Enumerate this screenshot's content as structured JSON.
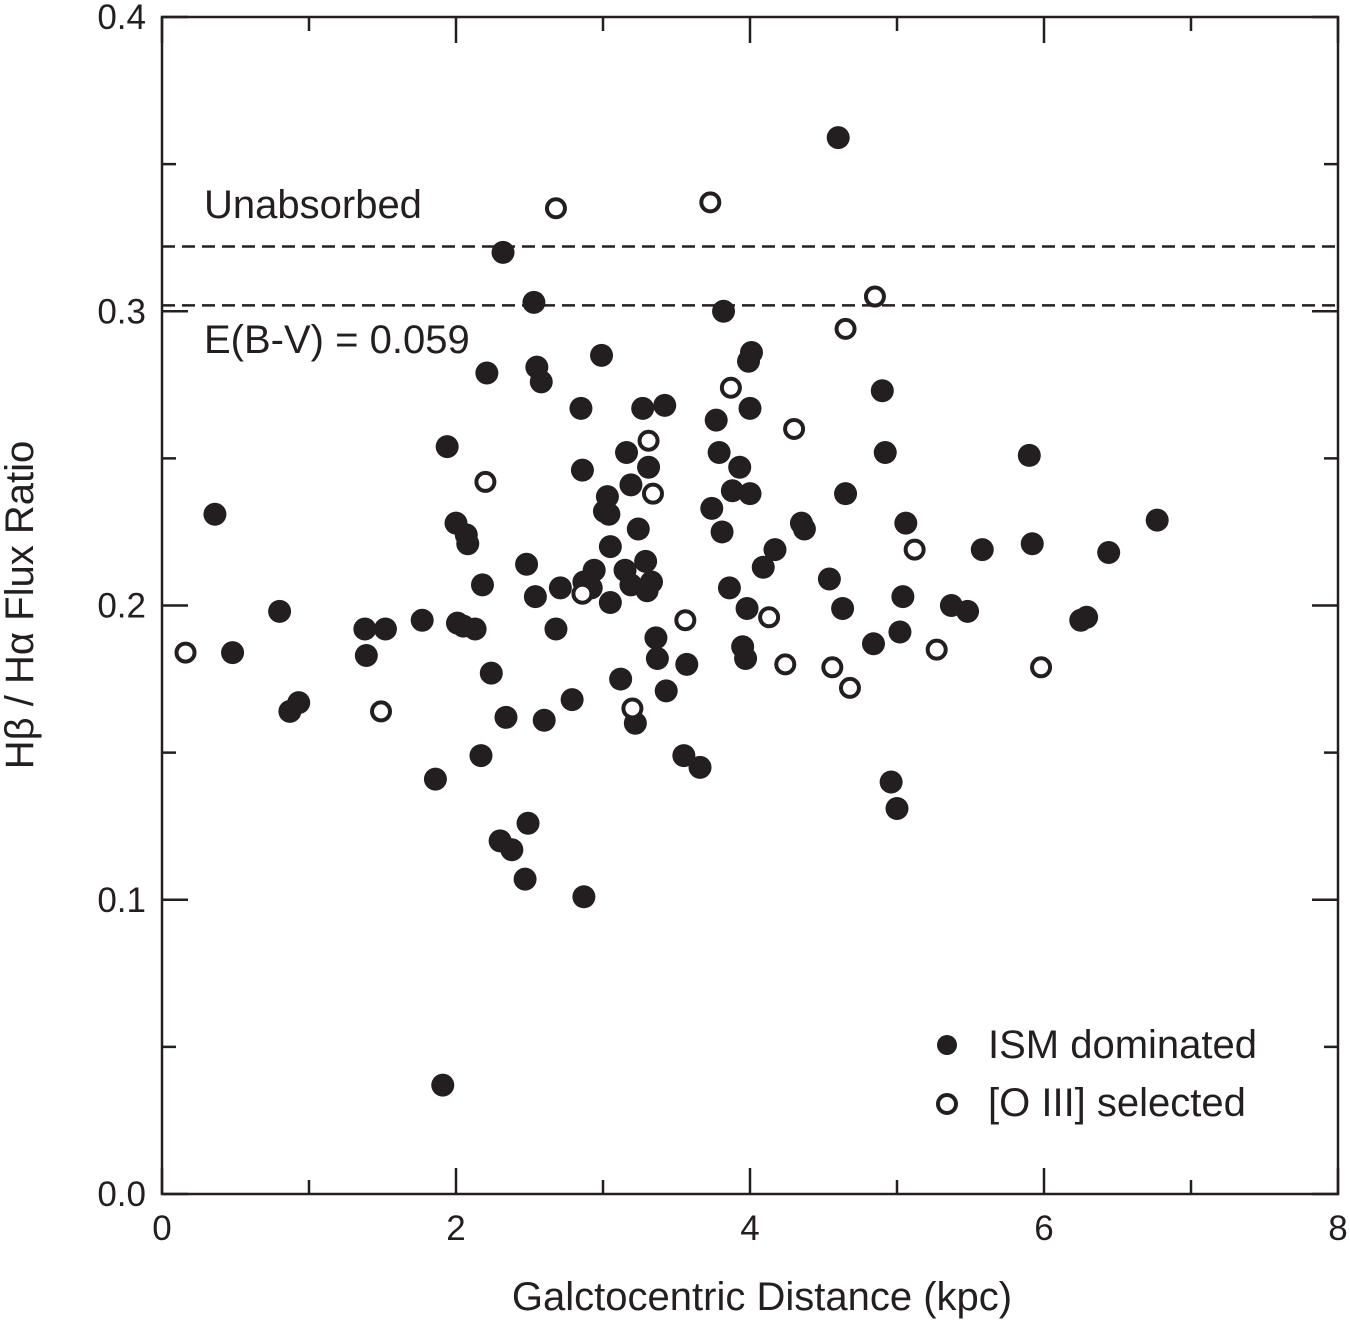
{
  "chart_data": {
    "type": "scatter",
    "xlabel": "Galctocentric Distance (kpc)",
    "ylabel": "Hβ / Hα Flux Ratio",
    "xlim": [
      0,
      8
    ],
    "ylim": [
      0.0,
      0.4
    ],
    "xticks": [
      "0",
      "2",
      "4",
      "6",
      "8"
    ],
    "yticks": [
      "0.0",
      "0.1",
      "0.2",
      "0.3",
      "0.4"
    ],
    "grid": false,
    "legend_position": "bottom-right",
    "colors": {
      "ink": "#231f20",
      "background": "#ffffff"
    },
    "reference_lines": [
      {
        "y": 0.322,
        "style": "dashed",
        "label": "Unabsorbed"
      },
      {
        "y": 0.302,
        "style": "dashed",
        "label": "E(B-V) = 0.059"
      }
    ],
    "series": [
      {
        "name": "ISM dominated",
        "marker": "filled-circle",
        "points": [
          [
            0.36,
            0.231
          ],
          [
            0.48,
            0.184
          ],
          [
            0.8,
            0.198
          ],
          [
            0.87,
            0.164
          ],
          [
            0.93,
            0.167
          ],
          [
            1.38,
            0.192
          ],
          [
            1.39,
            0.183
          ],
          [
            1.52,
            0.192
          ],
          [
            1.77,
            0.195
          ],
          [
            1.86,
            0.141
          ],
          [
            1.91,
            0.037
          ],
          [
            1.94,
            0.254
          ],
          [
            2.0,
            0.228
          ],
          [
            2.01,
            0.194
          ],
          [
            2.05,
            0.193
          ],
          [
            2.07,
            0.224
          ],
          [
            2.08,
            0.221
          ],
          [
            2.13,
            0.192
          ],
          [
            2.17,
            0.149
          ],
          [
            2.18,
            0.207
          ],
          [
            2.21,
            0.279
          ],
          [
            2.24,
            0.177
          ],
          [
            2.3,
            0.12
          ],
          [
            2.32,
            0.32
          ],
          [
            2.34,
            0.162
          ],
          [
            2.38,
            0.117
          ],
          [
            2.47,
            0.107
          ],
          [
            2.48,
            0.214
          ],
          [
            2.49,
            0.126
          ],
          [
            2.53,
            0.303
          ],
          [
            2.54,
            0.203
          ],
          [
            2.55,
            0.281
          ],
          [
            2.58,
            0.276
          ],
          [
            2.6,
            0.161
          ],
          [
            2.68,
            0.192
          ],
          [
            2.71,
            0.206
          ],
          [
            2.79,
            0.168
          ],
          [
            2.85,
            0.267
          ],
          [
            2.86,
            0.246
          ],
          [
            2.87,
            0.101
          ],
          [
            2.87,
            0.208
          ],
          [
            2.92,
            0.206
          ],
          [
            2.94,
            0.212
          ],
          [
            2.99,
            0.285
          ],
          [
            3.01,
            0.232
          ],
          [
            3.03,
            0.237
          ],
          [
            3.04,
            0.231
          ],
          [
            3.05,
            0.22
          ],
          [
            3.05,
            0.201
          ],
          [
            3.12,
            0.175
          ],
          [
            3.15,
            0.212
          ],
          [
            3.16,
            0.252
          ],
          [
            3.19,
            0.241
          ],
          [
            3.19,
            0.207
          ],
          [
            3.22,
            0.16
          ],
          [
            3.24,
            0.226
          ],
          [
            3.27,
            0.267
          ],
          [
            3.29,
            0.215
          ],
          [
            3.3,
            0.205
          ],
          [
            3.31,
            0.247
          ],
          [
            3.33,
            0.208
          ],
          [
            3.36,
            0.189
          ],
          [
            3.37,
            0.182
          ],
          [
            3.42,
            0.268
          ],
          [
            3.43,
            0.171
          ],
          [
            3.55,
            0.149
          ],
          [
            3.57,
            0.18
          ],
          [
            3.66,
            0.145
          ],
          [
            3.74,
            0.233
          ],
          [
            3.77,
            0.263
          ],
          [
            3.79,
            0.252
          ],
          [
            3.81,
            0.225
          ],
          [
            3.82,
            0.3
          ],
          [
            3.86,
            0.206
          ],
          [
            3.88,
            0.239
          ],
          [
            3.93,
            0.247
          ],
          [
            3.95,
            0.186
          ],
          [
            3.97,
            0.182
          ],
          [
            3.98,
            0.199
          ],
          [
            3.99,
            0.283
          ],
          [
            4.0,
            0.267
          ],
          [
            4.0,
            0.238
          ],
          [
            4.01,
            0.286
          ],
          [
            4.09,
            0.213
          ],
          [
            4.17,
            0.219
          ],
          [
            4.35,
            0.228
          ],
          [
            4.37,
            0.226
          ],
          [
            4.54,
            0.209
          ],
          [
            4.6,
            0.359
          ],
          [
            4.63,
            0.199
          ],
          [
            4.65,
            0.238
          ],
          [
            4.84,
            0.187
          ],
          [
            4.9,
            0.273
          ],
          [
            4.92,
            0.252
          ],
          [
            4.96,
            0.14
          ],
          [
            5.0,
            0.131
          ],
          [
            5.02,
            0.191
          ],
          [
            5.04,
            0.203
          ],
          [
            5.06,
            0.228
          ],
          [
            5.37,
            0.2
          ],
          [
            5.48,
            0.198
          ],
          [
            5.58,
            0.219
          ],
          [
            5.9,
            0.251
          ],
          [
            5.92,
            0.221
          ],
          [
            6.25,
            0.195
          ],
          [
            6.29,
            0.196
          ],
          [
            6.44,
            0.218
          ],
          [
            6.77,
            0.229
          ]
        ]
      },
      {
        "name": "[O III] selected",
        "marker": "open-circle",
        "points": [
          [
            0.16,
            0.184
          ],
          [
            1.49,
            0.164
          ],
          [
            2.2,
            0.242
          ],
          [
            2.68,
            0.335
          ],
          [
            2.86,
            0.204
          ],
          [
            3.2,
            0.165
          ],
          [
            3.31,
            0.256
          ],
          [
            3.34,
            0.238
          ],
          [
            3.56,
            0.195
          ],
          [
            3.73,
            0.337
          ],
          [
            3.87,
            0.274
          ],
          [
            4.13,
            0.196
          ],
          [
            4.24,
            0.18
          ],
          [
            4.3,
            0.26
          ],
          [
            4.56,
            0.179
          ],
          [
            4.65,
            0.294
          ],
          [
            4.68,
            0.172
          ],
          [
            4.85,
            0.305
          ],
          [
            5.12,
            0.219
          ],
          [
            5.27,
            0.185
          ],
          [
            5.98,
            0.179
          ]
        ]
      }
    ]
  }
}
